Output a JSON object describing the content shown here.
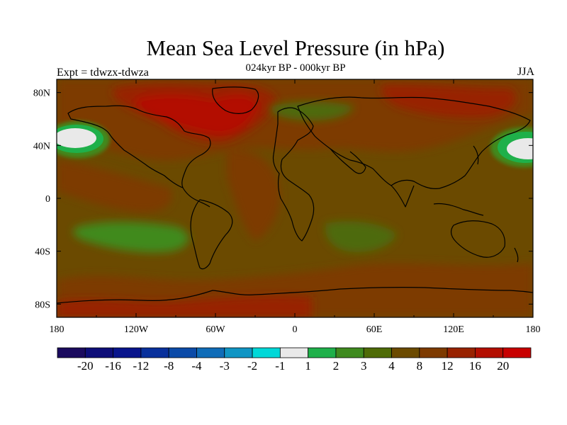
{
  "title": "Mean Sea Level Pressure (in hPa)",
  "subtitle": "024kyr BP - 000kyr BP",
  "experiment_label": "Expt = tdwzx-tdwza",
  "season_label": "JJA",
  "map": {
    "lon_labels": [
      "180",
      "120W",
      "60W",
      "0",
      "60E",
      "120E",
      "180"
    ],
    "lat_labels": [
      "80N",
      "40N",
      "0",
      "40S",
      "80S"
    ],
    "background_color": "#6b4a00"
  },
  "colorbar": {
    "labels": [
      "-20",
      "-16",
      "-12",
      "-8",
      "-4",
      "-3",
      "-2",
      "-1",
      "1",
      "2",
      "3",
      "4",
      "8",
      "12",
      "16",
      "20"
    ],
    "colors": [
      "#1a0a5e",
      "#0d0d78",
      "#08148c",
      "#08309c",
      "#0b4aa8",
      "#0f6cb8",
      "#1095c4",
      "#00d8d8",
      "#e9e9e9",
      "#1fb04a",
      "#3f8a1f",
      "#4e6b07",
      "#6b4a00",
      "#7d3a00",
      "#982200",
      "#b30e00",
      "#c80000"
    ]
  }
}
